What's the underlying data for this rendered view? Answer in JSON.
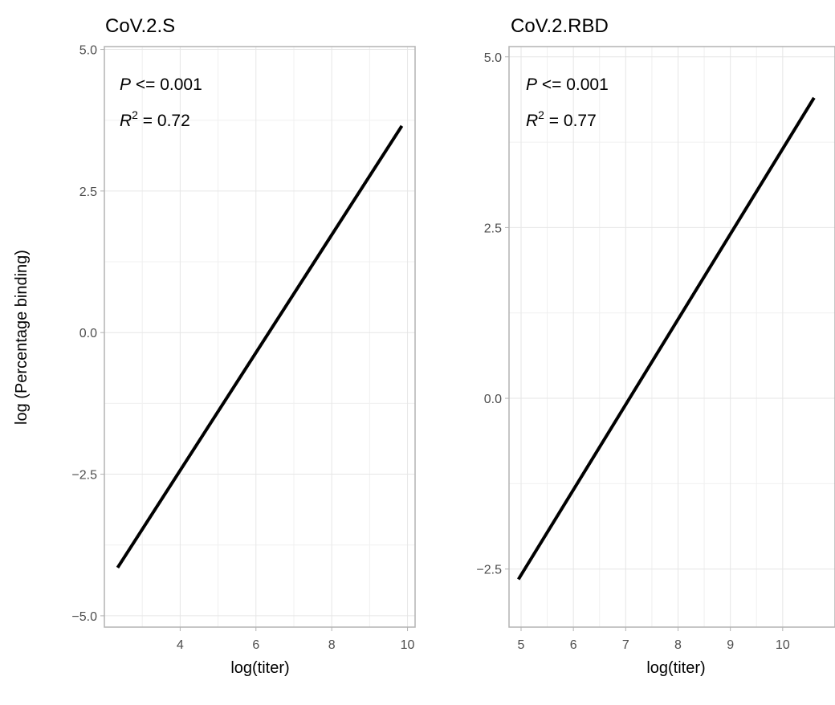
{
  "ylabel": "log (Percentage binding)",
  "colors": {
    "line": "#000000",
    "grid": "#e6e6e6",
    "frame": "#b3b3b3",
    "tick_text": "#4d4d4d"
  },
  "chart_data": [
    {
      "type": "line",
      "title": "CoV.2.S",
      "xlabel": "log(titer)",
      "x_ticks": [
        4,
        6,
        8,
        10
      ],
      "y_ticks": [
        -5.0,
        -2.5,
        0.0,
        2.5,
        5.0
      ],
      "x_tick_labels": [
        "4",
        "6",
        "8",
        "10"
      ],
      "y_tick_labels": [
        "−5.0",
        "−2.5",
        "0.0",
        "2.5",
        "5.0"
      ],
      "xlim": [
        2.0,
        10.2
      ],
      "ylim": [
        -5.2,
        5.05
      ],
      "grid": true,
      "annotation": {
        "p_symbol": "P",
        "p_text": " <= 0.001",
        "r_symbol": "R",
        "r_sup": "2",
        "r_text": " = 0.72"
      },
      "series": [
        {
          "x": [
            2.35,
            9.85
          ],
          "y": [
            -4.15,
            3.65
          ]
        }
      ]
    },
    {
      "type": "line",
      "title": "CoV.2.RBD",
      "xlabel": "log(titer)",
      "x_ticks": [
        5,
        6,
        7,
        8,
        9,
        10
      ],
      "y_ticks": [
        -2.5,
        0.0,
        2.5,
        5.0
      ],
      "x_tick_labels": [
        "5",
        "6",
        "7",
        "8",
        "9",
        "10"
      ],
      "y_tick_labels": [
        "−2.5",
        "0.0",
        "2.5",
        "5.0"
      ],
      "xlim": [
        4.77,
        11.0
      ],
      "ylim": [
        -3.35,
        5.15
      ],
      "grid": true,
      "annotation": {
        "p_symbol": "P",
        "p_text": " <= 0.001",
        "r_symbol": "R",
        "r_sup": "2",
        "r_text": " = 0.77"
      },
      "series": [
        {
          "x": [
            4.95,
            10.6
          ],
          "y": [
            -2.65,
            4.4
          ]
        }
      ]
    }
  ]
}
